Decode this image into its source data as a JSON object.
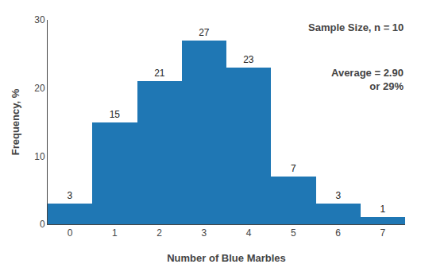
{
  "chart_data": {
    "type": "bar",
    "x": [
      0,
      1,
      2,
      3,
      4,
      5,
      6,
      7
    ],
    "values": [
      3,
      15,
      21,
      27,
      23,
      7,
      3,
      1
    ],
    "xlabel": "Number of Blue Marbles",
    "ylabel": "Frequency, %",
    "xlim": [
      -0.5,
      7.5
    ],
    "xticks": [
      0,
      1,
      2,
      3,
      4,
      5,
      6,
      7
    ],
    "ylim": [
      0,
      30
    ],
    "yticks": [
      0,
      10,
      20,
      30
    ],
    "data_labels": true,
    "grid": false,
    "annotations": [
      "Sample Size, n = 10",
      "Average = 2.90\nor 29%"
    ]
  }
}
